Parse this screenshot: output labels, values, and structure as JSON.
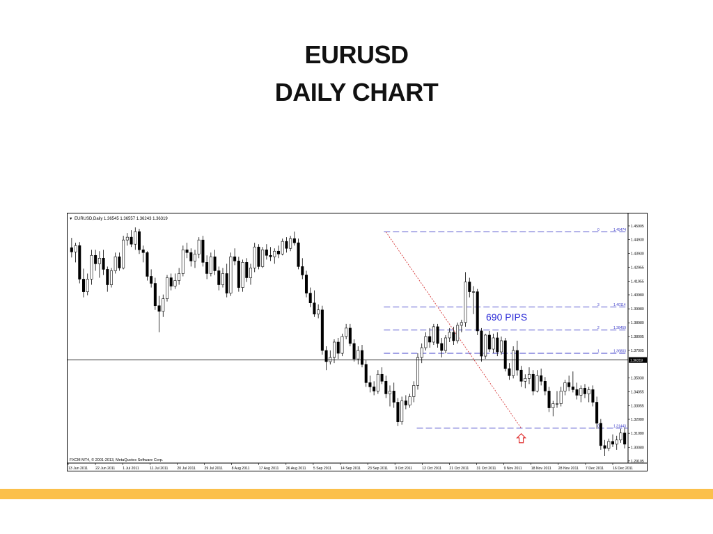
{
  "slide": {
    "title_line1": "EURUSD",
    "title_line2": "DAILY CHART"
  },
  "colors": {
    "accent_bar": "#FBC04B",
    "candle_bull": "#ffffff",
    "candle_bear": "#000000",
    "level_line": "#3c3cc8",
    "trend_line": "#d84040",
    "arrow": "#e03030",
    "annotation_text": "#2f2fd8"
  },
  "chart_data": {
    "type": "candlestick",
    "header": "EURUSD,Daily  1.36545 1.36557 1.36243 1.36319",
    "footer": "FXCM MT4, © 2001-2013, MetaQuotes Software Corp.",
    "ylim": [
      1.2895,
      1.4625
    ],
    "y_ticks": [
      "1.45905",
      "1.44930",
      "1.43930",
      "1.42955",
      "1.41955",
      "1.40980",
      "1.39980",
      "1.38980",
      "1.38005",
      "1.37005",
      "1.36030",
      "1.35030",
      "1.34055",
      "1.33055",
      "1.32080",
      "1.31080",
      "1.30080",
      "1.29105"
    ],
    "x_labels": [
      "13 Jun 2011",
      "22 Jun 2011",
      "1 Jul 2011",
      "11 Jul 2011",
      "20 Jul 2011",
      "29 Jul 2011",
      "8 Aug 2011",
      "17 Aug 2011",
      "26 Aug 2011",
      "5 Sep 2011",
      "14 Sep 2011",
      "23 Sep 2011",
      "3 Oct 2011",
      "12 Oct 2011",
      "21 Oct 2011",
      "31 Oct 2011",
      "9 Nov 2011",
      "18 Nov 2011",
      "28 Nov 2011",
      "7 Dec 2011",
      "16 Dec 2011"
    ],
    "current_price": {
      "value": 1.36319,
      "label": "1.36319"
    },
    "fib_levels": [
      {
        "tag": "0",
        "value": 1.45474,
        "label": "1.45474"
      },
      {
        "tag": "3",
        "value": 1.40114,
        "label": "1.40114"
      },
      {
        "tag": "2",
        "value": 1.38459,
        "label": "1.38459"
      },
      {
        "tag": "1",
        "value": 1.36803,
        "label": "1.36803"
      },
      {
        "tag": "0",
        "value": 1.31443,
        "label": "1.31443"
      }
    ],
    "trend_line": {
      "from": {
        "bar": 79,
        "value": 1.45474
      },
      "to": {
        "bar": 113,
        "value": 1.31443
      }
    },
    "annotation": {
      "text": "690 PIPS",
      "bar": 108,
      "value": 1.3915
    },
    "arrow": {
      "bar": 113,
      "value": 1.3105
    },
    "candles": [
      [
        1.4435,
        1.4505,
        1.4365,
        1.4405
      ],
      [
        1.4405,
        1.447,
        1.433,
        1.445
      ],
      [
        1.445,
        1.4475,
        1.418,
        1.421
      ],
      [
        1.421,
        1.4285,
        1.408,
        1.412
      ],
      [
        1.412,
        1.425,
        1.4095,
        1.421
      ],
      [
        1.421,
        1.442,
        1.417,
        1.438
      ],
      [
        1.438,
        1.442,
        1.427,
        1.432
      ],
      [
        1.432,
        1.441,
        1.422,
        1.436
      ],
      [
        1.436,
        1.442,
        1.424,
        1.428
      ],
      [
        1.428,
        1.43,
        1.412,
        1.417
      ],
      [
        1.417,
        1.429,
        1.415,
        1.427
      ],
      [
        1.427,
        1.44,
        1.425,
        1.437
      ],
      [
        1.437,
        1.44,
        1.427,
        1.429
      ],
      [
        1.429,
        1.452,
        1.428,
        1.449
      ],
      [
        1.449,
        1.454,
        1.445,
        1.451
      ],
      [
        1.451,
        1.456,
        1.444,
        1.446
      ],
      [
        1.446,
        1.458,
        1.442,
        1.455
      ],
      [
        1.455,
        1.457,
        1.439,
        1.442
      ],
      [
        1.442,
        1.445,
        1.433,
        1.44
      ],
      [
        1.44,
        1.441,
        1.42,
        1.423
      ],
      [
        1.423,
        1.428,
        1.415,
        1.418
      ],
      [
        1.418,
        1.422,
        1.399,
        1.402
      ],
      [
        1.402,
        1.409,
        1.383,
        1.398
      ],
      [
        1.398,
        1.41,
        1.394,
        1.407
      ],
      [
        1.407,
        1.424,
        1.405,
        1.422
      ],
      [
        1.422,
        1.425,
        1.413,
        1.416
      ],
      [
        1.416,
        1.425,
        1.414,
        1.42
      ],
      [
        1.42,
        1.429,
        1.417,
        1.425
      ],
      [
        1.425,
        1.445,
        1.423,
        1.442
      ],
      [
        1.442,
        1.447,
        1.436,
        1.44
      ],
      [
        1.44,
        1.443,
        1.43,
        1.434
      ],
      [
        1.434,
        1.442,
        1.429,
        1.439
      ],
      [
        1.439,
        1.451,
        1.436,
        1.449
      ],
      [
        1.449,
        1.452,
        1.43,
        1.433
      ],
      [
        1.433,
        1.438,
        1.421,
        1.425
      ],
      [
        1.425,
        1.44,
        1.423,
        1.437
      ],
      [
        1.437,
        1.442,
        1.424,
        1.427
      ],
      [
        1.427,
        1.43,
        1.413,
        1.417
      ],
      [
        1.417,
        1.429,
        1.415,
        1.425
      ],
      [
        1.425,
        1.432,
        1.408,
        1.411
      ],
      [
        1.411,
        1.44,
        1.409,
        1.437
      ],
      [
        1.437,
        1.443,
        1.431,
        1.434
      ],
      [
        1.434,
        1.437,
        1.412,
        1.415
      ],
      [
        1.415,
        1.435,
        1.412,
        1.433
      ],
      [
        1.433,
        1.436,
        1.419,
        1.422
      ],
      [
        1.422,
        1.432,
        1.417,
        1.429
      ],
      [
        1.429,
        1.447,
        1.426,
        1.444
      ],
      [
        1.444,
        1.446,
        1.428,
        1.43
      ],
      [
        1.43,
        1.444,
        1.429,
        1.442
      ],
      [
        1.442,
        1.446,
        1.435,
        1.438
      ],
      [
        1.438,
        1.444,
        1.434,
        1.437
      ],
      [
        1.437,
        1.443,
        1.432,
        1.441
      ],
      [
        1.441,
        1.445,
        1.436,
        1.439
      ],
      [
        1.439,
        1.45,
        1.438,
        1.448
      ],
      [
        1.448,
        1.451,
        1.44,
        1.443
      ],
      [
        1.443,
        1.452,
        1.441,
        1.45
      ],
      [
        1.45,
        1.455,
        1.445,
        1.447
      ],
      [
        1.447,
        1.45,
        1.428,
        1.43
      ],
      [
        1.43,
        1.436,
        1.421,
        1.424
      ],
      [
        1.424,
        1.427,
        1.408,
        1.411
      ],
      [
        1.411,
        1.415,
        1.401,
        1.404
      ],
      [
        1.404,
        1.413,
        1.394,
        1.396
      ],
      [
        1.396,
        1.403,
        1.393,
        1.399
      ],
      [
        1.399,
        1.402,
        1.367,
        1.37
      ],
      [
        1.37,
        1.373,
        1.356,
        1.362
      ],
      [
        1.362,
        1.37,
        1.36,
        1.365
      ],
      [
        1.365,
        1.378,
        1.361,
        1.376
      ],
      [
        1.376,
        1.379,
        1.364,
        1.368
      ],
      [
        1.368,
        1.382,
        1.366,
        1.38
      ],
      [
        1.38,
        1.389,
        1.378,
        1.386
      ],
      [
        1.386,
        1.389,
        1.373,
        1.375
      ],
      [
        1.375,
        1.378,
        1.362,
        1.364
      ],
      [
        1.364,
        1.373,
        1.36,
        1.37
      ],
      [
        1.37,
        1.374,
        1.358,
        1.36
      ],
      [
        1.36,
        1.363,
        1.344,
        1.347
      ],
      [
        1.347,
        1.352,
        1.34,
        1.344
      ],
      [
        1.344,
        1.348,
        1.338,
        1.341
      ],
      [
        1.341,
        1.356,
        1.339,
        1.353
      ],
      [
        1.353,
        1.358,
        1.346,
        1.348
      ],
      [
        1.348,
        1.352,
        1.336,
        1.339
      ],
      [
        1.339,
        1.345,
        1.33,
        1.341
      ],
      [
        1.341,
        1.347,
        1.329,
        1.333
      ],
      [
        1.333,
        1.336,
        1.316,
        1.319
      ],
      [
        1.319,
        1.337,
        1.317,
        1.334
      ],
      [
        1.334,
        1.338,
        1.328,
        1.331
      ],
      [
        1.331,
        1.339,
        1.329,
        1.337
      ],
      [
        1.337,
        1.348,
        1.333,
        1.345
      ],
      [
        1.345,
        1.368,
        1.342,
        1.365
      ],
      [
        1.365,
        1.375,
        1.361,
        1.372
      ],
      [
        1.372,
        1.383,
        1.37,
        1.38
      ],
      [
        1.38,
        1.386,
        1.372,
        1.376
      ],
      [
        1.376,
        1.389,
        1.374,
        1.387
      ],
      [
        1.387,
        1.389,
        1.372,
        1.375
      ],
      [
        1.375,
        1.379,
        1.365,
        1.37
      ],
      [
        1.37,
        1.381,
        1.368,
        1.379
      ],
      [
        1.379,
        1.386,
        1.376,
        1.383
      ],
      [
        1.383,
        1.387,
        1.374,
        1.377
      ],
      [
        1.377,
        1.39,
        1.375,
        1.388
      ],
      [
        1.388,
        1.392,
        1.383,
        1.39
      ],
      [
        1.39,
        1.426,
        1.387,
        1.419
      ],
      [
        1.419,
        1.422,
        1.408,
        1.412
      ],
      [
        1.412,
        1.416,
        1.396,
        1.412
      ],
      [
        1.412,
        1.414,
        1.381,
        1.384
      ],
      [
        1.384,
        1.386,
        1.362,
        1.366
      ],
      [
        1.366,
        1.382,
        1.364,
        1.381
      ],
      [
        1.381,
        1.384,
        1.369,
        1.371
      ],
      [
        1.371,
        1.382,
        1.368,
        1.379
      ],
      [
        1.379,
        1.383,
        1.366,
        1.369
      ],
      [
        1.369,
        1.38,
        1.367,
        1.377
      ],
      [
        1.377,
        1.379,
        1.355,
        1.357
      ],
      [
        1.357,
        1.361,
        1.349,
        1.352
      ],
      [
        1.352,
        1.373,
        1.35,
        1.37
      ],
      [
        1.37,
        1.377,
        1.352,
        1.356
      ],
      [
        1.356,
        1.359,
        1.344,
        1.348
      ],
      [
        1.348,
        1.353,
        1.343,
        1.35
      ],
      [
        1.35,
        1.358,
        1.346,
        1.353
      ],
      [
        1.353,
        1.356,
        1.338,
        1.341
      ],
      [
        1.341,
        1.356,
        1.34,
        1.352
      ],
      [
        1.352,
        1.357,
        1.345,
        1.348
      ],
      [
        1.348,
        1.351,
        1.338,
        1.341
      ],
      [
        1.341,
        1.344,
        1.326,
        1.329
      ],
      [
        1.329,
        1.334,
        1.323,
        1.332
      ],
      [
        1.332,
        1.341,
        1.329,
        1.332
      ],
      [
        1.332,
        1.344,
        1.33,
        1.341
      ],
      [
        1.341,
        1.349,
        1.338,
        1.347
      ],
      [
        1.347,
        1.352,
        1.341,
        1.344
      ],
      [
        1.344,
        1.355,
        1.34,
        1.342
      ],
      [
        1.342,
        1.347,
        1.335,
        1.338
      ],
      [
        1.338,
        1.345,
        1.333,
        1.343
      ],
      [
        1.343,
        1.346,
        1.336,
        1.339
      ],
      [
        1.339,
        1.344,
        1.333,
        1.342
      ],
      [
        1.342,
        1.345,
        1.33,
        1.333
      ],
      [
        1.333,
        1.337,
        1.314,
        1.318
      ],
      [
        1.318,
        1.321,
        1.299,
        1.302
      ],
      [
        1.302,
        1.306,
        1.2945,
        1.3
      ],
      [
        1.3,
        1.307,
        1.298,
        1.305
      ],
      [
        1.305,
        1.31,
        1.301,
        1.303
      ],
      [
        1.303,
        1.309,
        1.299,
        1.306
      ],
      [
        1.306,
        1.314,
        1.304,
        1.311
      ],
      [
        1.311,
        1.315,
        1.3,
        1.303
      ]
    ]
  }
}
